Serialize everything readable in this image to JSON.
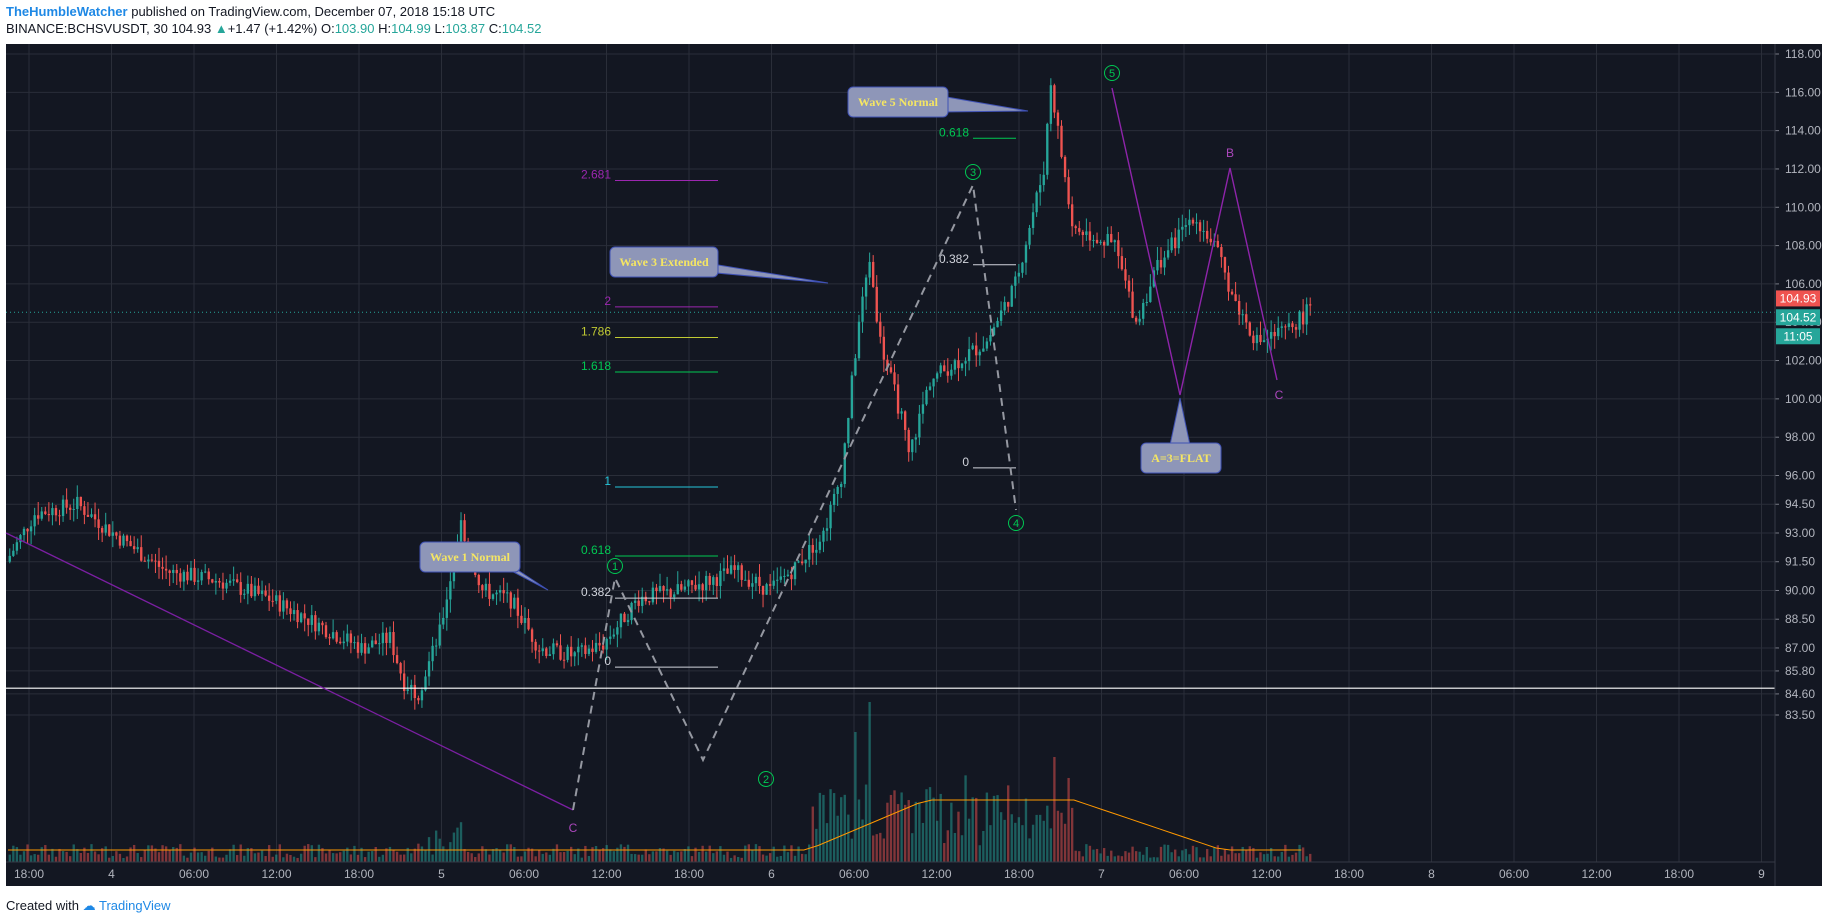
{
  "header": {
    "author": "TheHumbleWatcher",
    "published": "published on TradingView.com, December 07, 2018 15:18 UTC"
  },
  "symbol_line": {
    "symbol": "BINANCE:BCHSVUSDT, 30",
    "last": "104.93",
    "change": "+1.47 (+1.42%)",
    "o_label": "O:",
    "o": "103.90",
    "h_label": "H:",
    "h": "104.99",
    "l_label": "L:",
    "l": "103.87",
    "c_label": "C:",
    "c": "104.52"
  },
  "footer": {
    "created_with": "Created with",
    "brand": "TradingView"
  },
  "price_labels": {
    "last": "104.93",
    "close": "104.52",
    "countdown": "11:05"
  },
  "colors": {
    "background": "#131722",
    "grid": "#2a2e39",
    "up": "#26a69a",
    "down": "#ef5350",
    "wave_label": "#00c853",
    "corrective": "#9c27b0",
    "callout_fill": "#8e96b8",
    "callout_text": "#f5e663"
  },
  "chart_data": {
    "type": "candlestick",
    "symbol": "BINANCE:BCHSVUSDT",
    "interval": "30",
    "ylim": [
      82.5,
      118.5
    ],
    "y_ticks": [
      "118.00",
      "116.00",
      "114.00",
      "112.00",
      "110.00",
      "108.00",
      "106.00",
      "104.00",
      "102.00",
      "100.00",
      "98.00",
      "96.00",
      "94.50",
      "93.00",
      "91.50",
      "90.00",
      "88.50",
      "87.00",
      "85.80",
      "84.60",
      "83.50"
    ],
    "x_ticks": [
      "18:00",
      "4",
      "06:00",
      "12:00",
      "18:00",
      "5",
      "06:00",
      "12:00",
      "18:00",
      "6",
      "06:00",
      "12:00",
      "18:00",
      "7",
      "06:00",
      "12:00",
      "18:00",
      "8",
      "06:00",
      "12:00",
      "18:00",
      "9"
    ],
    "fib_levels": [
      {
        "label": "2.681",
        "value": 111.4,
        "color": "#9c27b0"
      },
      {
        "label": "2",
        "value": 104.8,
        "color": "#9c27b0"
      },
      {
        "label": "1.786",
        "value": 103.2,
        "color": "#c0ca33"
      },
      {
        "label": "1.618",
        "value": 101.4,
        "color": "#00c853"
      },
      {
        "label": "1",
        "value": 95.4,
        "color": "#26c6da"
      },
      {
        "label": "0.618",
        "value": 91.8,
        "color": "#00c853"
      },
      {
        "label": "0.382",
        "value": 89.6,
        "color": "#d1d4dc"
      },
      {
        "label": "0",
        "value": 86.0,
        "color": "#d1d4dc"
      },
      {
        "label": "0.618",
        "value": 113.6,
        "color": "#00c853"
      },
      {
        "label": "0.382",
        "value": 107.0,
        "color": "#d1d4dc"
      },
      {
        "label": "0",
        "value": 96.4,
        "color": "#d1d4dc"
      }
    ],
    "wave_labels": [
      "1",
      "2",
      "3",
      "4",
      "5"
    ],
    "corrective_labels": [
      "C",
      "B",
      "C"
    ],
    "annotations": [
      "Wave 1 Normal",
      "Wave 3 Extended",
      "Wave 5 Normal",
      "A=3=FLAT"
    ],
    "horizontal_line": 84.9,
    "last_price": 104.93,
    "close_price": 104.52
  }
}
